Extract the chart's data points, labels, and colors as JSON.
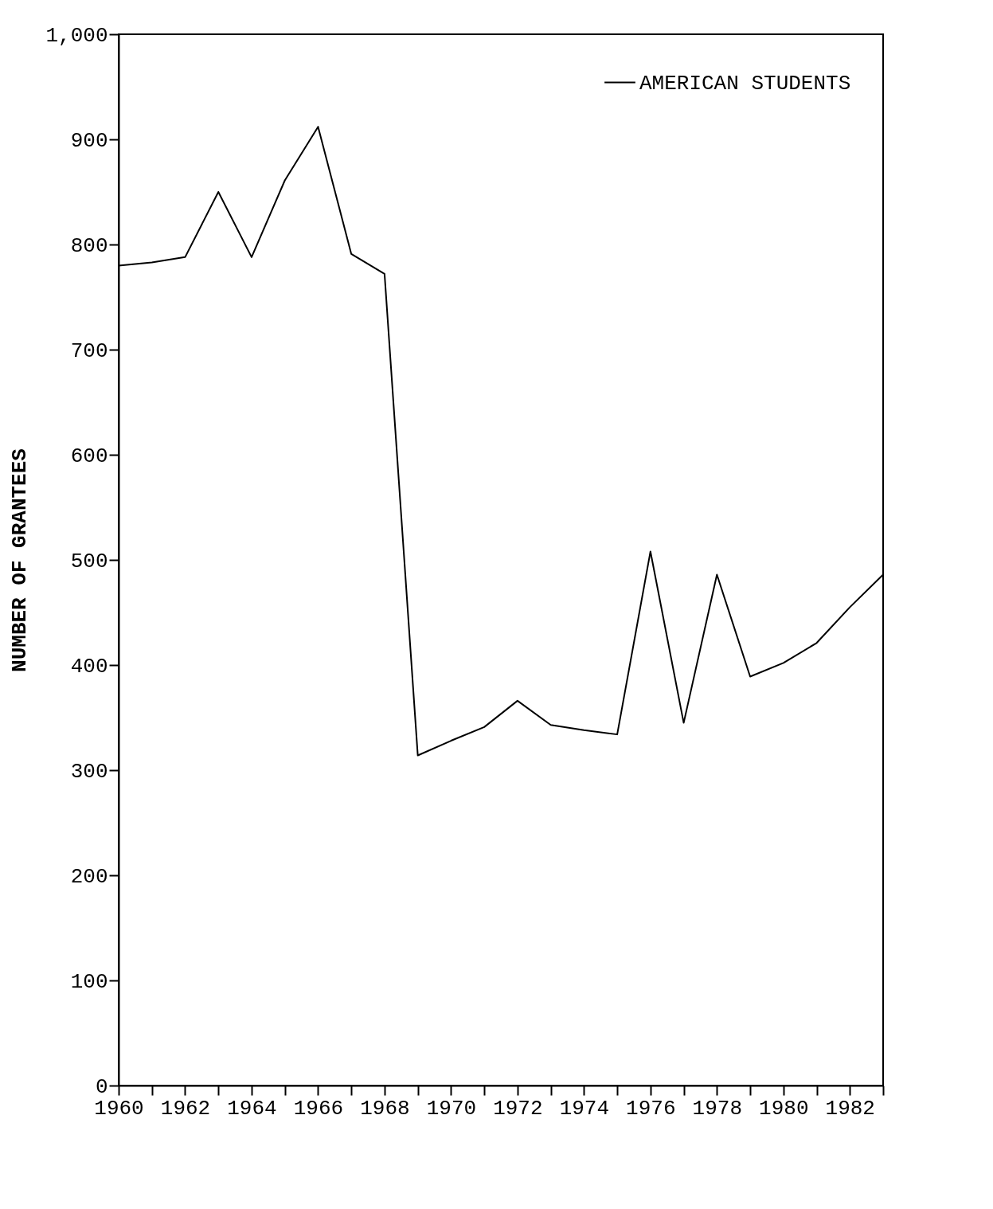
{
  "chart_data": {
    "type": "line",
    "ylabel": "NUMBER OF GRANTEES",
    "x": [
      1960,
      1961,
      1962,
      1963,
      1964,
      1965,
      1966,
      1967,
      1968,
      1969,
      1970,
      1971,
      1972,
      1973,
      1974,
      1975,
      1976,
      1977,
      1978,
      1979,
      1980,
      1981,
      1982,
      1983
    ],
    "series": [
      {
        "name": "AMERICAN STUDENTS",
        "color": "#000000",
        "values": [
          780,
          783,
          788,
          850,
          788,
          861,
          912,
          791,
          772,
          314,
          328,
          341,
          366,
          343,
          338,
          334,
          508,
          345,
          486,
          389,
          402,
          421,
          455,
          486
        ]
      }
    ],
    "xlim": [
      1960,
      1983
    ],
    "xticks": [
      1960,
      {
        "value": 1961,
        "label": null
      },
      1962,
      {
        "value": 1963,
        "label": null
      },
      1964,
      {
        "value": 1965,
        "label": null
      },
      1966,
      {
        "value": 1967,
        "label": null
      },
      1968,
      {
        "value": 1969,
        "label": null
      },
      1970,
      {
        "value": 1971,
        "label": null
      },
      1972,
      {
        "value": 1973,
        "label": null
      },
      1974,
      {
        "value": 1975,
        "label": null
      },
      1976,
      {
        "value": 1977,
        "label": null
      },
      1978,
      {
        "value": 1979,
        "label": null
      },
      1980,
      {
        "value": 1981,
        "label": null
      },
      1982,
      {
        "value": 1983,
        "label": null
      }
    ],
    "ylim": [
      0,
      1000
    ],
    "yticks": [
      0,
      100,
      200,
      300,
      400,
      500,
      600,
      700,
      800,
      900,
      {
        "value": 1000,
        "label": "1,000"
      }
    ],
    "legend": "top right",
    "grid": false,
    "marker": "none",
    "line_style": "solid"
  }
}
